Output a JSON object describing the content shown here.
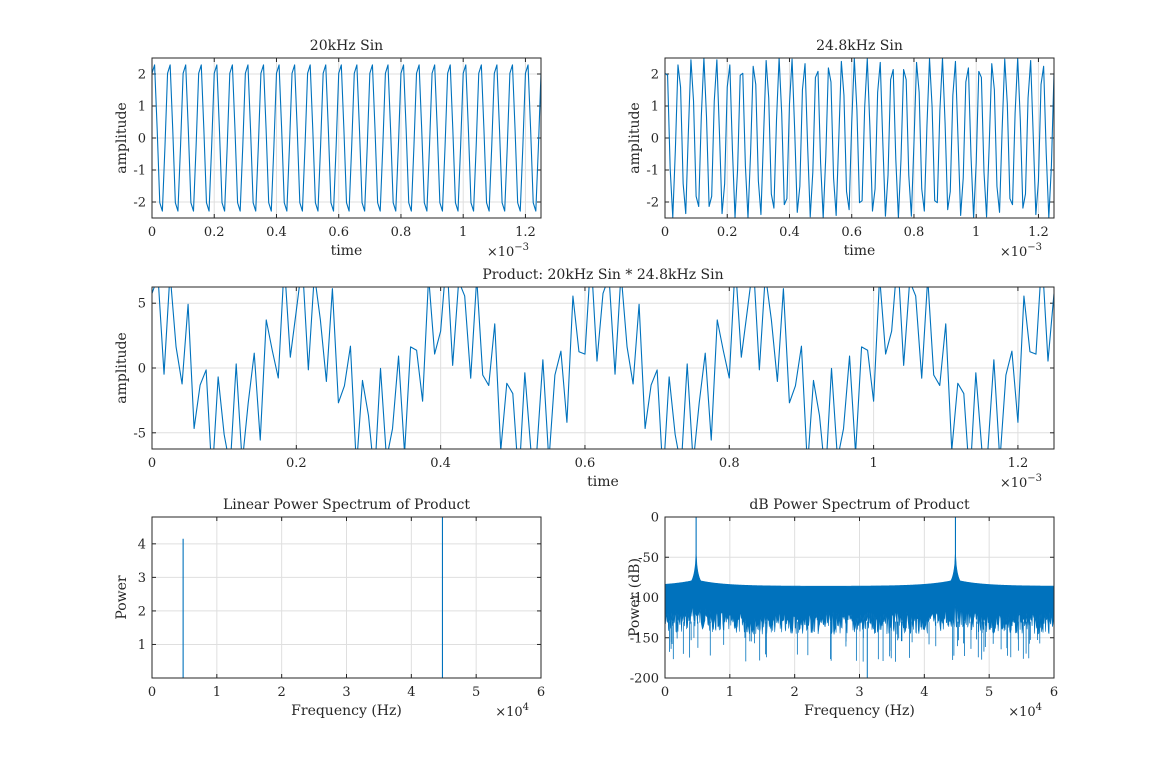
{
  "colors": {
    "line": "#0072bd",
    "grid": "#dfdfdf",
    "axis": "#262626",
    "background": "#ffffff"
  },
  "chart_data": [
    {
      "type": "line",
      "title": "20kHz Sin",
      "xlabel": "time",
      "ylabel": "amplitude",
      "x_exponent": "×10^-3",
      "x_exponent_base": "×10",
      "x_exponent_power": "−3",
      "xlim": [
        0,
        0.00125
      ],
      "ylim": [
        -2.5,
        2.5
      ],
      "grid": true,
      "xticks": [
        "0",
        "0.2",
        "0.4",
        "0.6",
        "0.8",
        "1",
        "1.2"
      ],
      "yticks": [
        "2",
        "1",
        "0",
        "-1",
        "-2"
      ],
      "series": [
        {
          "amplitude": 2.5,
          "frequency_hz": 20000,
          "sample_rate_hz": 120000,
          "t_range": [
            0,
            0.00125
          ]
        }
      ]
    },
    {
      "type": "line",
      "title": "24.8kHz Sin",
      "xlabel": "time",
      "ylabel": "amplitude",
      "x_exponent": "×10^-3",
      "x_exponent_base": "×10",
      "x_exponent_power": "−3",
      "xlim": [
        0,
        0.00125
      ],
      "ylim": [
        -2.5,
        2.5
      ],
      "grid": true,
      "xticks": [
        "0",
        "0.2",
        "0.4",
        "0.6",
        "0.8",
        "1",
        "1.2"
      ],
      "yticks": [
        "2",
        "1",
        "0",
        "-1",
        "-2"
      ],
      "series": [
        {
          "amplitude": 2.5,
          "frequency_hz": 24800,
          "sample_rate_hz": 120000,
          "t_range": [
            0,
            0.00125
          ]
        }
      ]
    },
    {
      "type": "line",
      "title": "Product: 20kHz Sin * 24.8kHz Sin",
      "xlabel": "time",
      "ylabel": "amplitude",
      "x_exponent": "×10^-3",
      "x_exponent_base": "×10",
      "x_exponent_power": "−3",
      "xlim": [
        0,
        0.00125
      ],
      "ylim": [
        -6.25,
        6.25
      ],
      "grid": true,
      "xticks": [
        "0",
        "0.2",
        "0.4",
        "0.6",
        "0.8",
        "1",
        "1.2"
      ],
      "yticks": [
        "5",
        "0",
        "-5"
      ],
      "series": [
        {
          "amplitude": 6.25,
          "product_of_hz": [
            20000,
            24800
          ],
          "sample_rate_hz": 120000,
          "t_range": [
            0,
            0.00125
          ]
        }
      ]
    },
    {
      "type": "line",
      "title": "Linear Power Spectrum of Product",
      "xlabel": "Frequency (Hz)",
      "ylabel": "Power",
      "x_exponent": "×10^4",
      "x_exponent_base": "×10",
      "x_exponent_power": "4",
      "xlim": [
        0,
        60000
      ],
      "ylim": [
        0,
        4.8
      ],
      "grid": true,
      "xticks": [
        "0",
        "1",
        "2",
        "3",
        "4",
        "5",
        "6"
      ],
      "yticks": [
        "4",
        "3",
        "2",
        "1"
      ],
      "series": [
        {
          "peaks": [
            {
              "x": 4800,
              "y": 4.15
            },
            {
              "x": 44800,
              "y": 4.8
            }
          ],
          "baseline": 0
        }
      ]
    },
    {
      "type": "area",
      "title": "dB Power Spectrum of Product",
      "xlabel": "Frequency (Hz)",
      "ylabel": "Power (dB)",
      "x_exponent": "×10^4",
      "x_exponent_base": "×10",
      "x_exponent_power": "4",
      "xlim": [
        0,
        60000
      ],
      "ylim": [
        -200,
        0
      ],
      "grid": true,
      "xticks": [
        "0",
        "1",
        "2",
        "3",
        "4",
        "5",
        "6"
      ],
      "yticks": [
        "0",
        "-50",
        "-100",
        "-150",
        "-200"
      ],
      "series": [
        {
          "peaks_hz": [
            4800,
            44800
          ],
          "peak_db": 0,
          "envelope_floor_db": -90,
          "noise_floor_db": -150
        }
      ]
    }
  ]
}
